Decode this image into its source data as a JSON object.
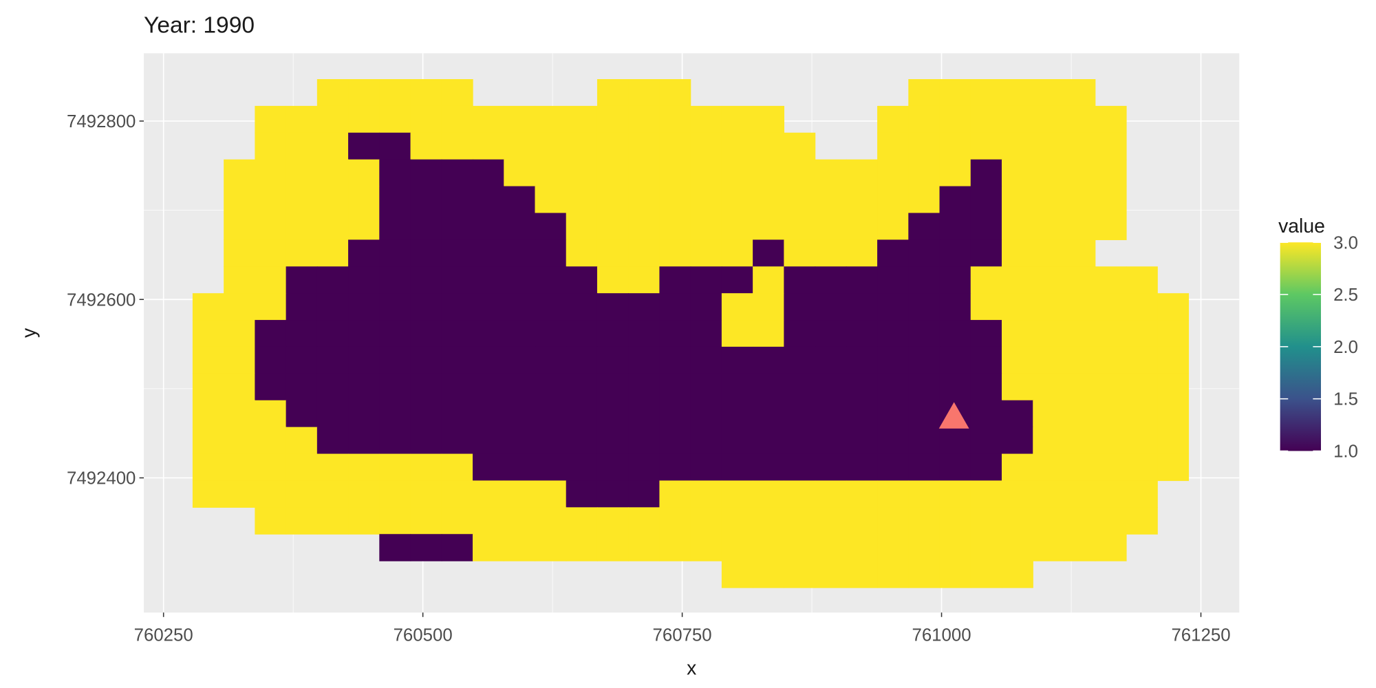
{
  "chart_data": {
    "type": "heatmap",
    "title": "Year: 1990",
    "x_label": "x",
    "y_label": "y",
    "x": [
      760293,
      760323,
      760353,
      760383,
      760413,
      760443,
      760473,
      760503,
      760533,
      760563,
      760593,
      760623,
      760653,
      760683,
      760713,
      760743,
      760773,
      760803,
      760833,
      760863,
      760893,
      760923,
      760953,
      760983,
      761013,
      761043,
      761073,
      761103,
      761133,
      761163,
      761193,
      761223
    ],
    "y": [
      7492832,
      7492802,
      7492772,
      7492742,
      7492712,
      7492682,
      7492652,
      7492622,
      7492592,
      7492562,
      7492532,
      7492502,
      7492472,
      7492442,
      7492412,
      7492382,
      7492352,
      7492322,
      7492292
    ],
    "z": [
      [
        null,
        null,
        null,
        null,
        3,
        3,
        3,
        3,
        3,
        null,
        null,
        null,
        null,
        3,
        3,
        3,
        null,
        null,
        null,
        null,
        null,
        null,
        null,
        3,
        3,
        3,
        3,
        3,
        3,
        null,
        null,
        null
      ],
      [
        null,
        null,
        3,
        3,
        3,
        3,
        3,
        3,
        3,
        3,
        3,
        3,
        3,
        3,
        3,
        3,
        3,
        3,
        3,
        null,
        null,
        null,
        3,
        3,
        3,
        3,
        3,
        3,
        3,
        3,
        null,
        null
      ],
      [
        null,
        null,
        3,
        3,
        3,
        1,
        1,
        3,
        3,
        3,
        3,
        3,
        3,
        3,
        3,
        3,
        3,
        3,
        3,
        3,
        null,
        null,
        3,
        3,
        3,
        3,
        3,
        3,
        3,
        3,
        null,
        null
      ],
      [
        null,
        3,
        3,
        3,
        3,
        3,
        1,
        1,
        1,
        1,
        3,
        3,
        3,
        3,
        3,
        3,
        3,
        3,
        3,
        3,
        3,
        3,
        3,
        3,
        3,
        1,
        3,
        3,
        3,
        3,
        null,
        null
      ],
      [
        null,
        3,
        3,
        3,
        3,
        3,
        1,
        1,
        1,
        1,
        1,
        3,
        3,
        3,
        3,
        3,
        3,
        3,
        3,
        3,
        3,
        3,
        3,
        3,
        1,
        1,
        3,
        3,
        3,
        3,
        null,
        null
      ],
      [
        null,
        3,
        3,
        3,
        3,
        3,
        1,
        1,
        1,
        1,
        1,
        1,
        3,
        3,
        3,
        3,
        3,
        3,
        3,
        3,
        3,
        3,
        3,
        1,
        1,
        1,
        3,
        3,
        3,
        3,
        null,
        null
      ],
      [
        null,
        3,
        3,
        3,
        3,
        1,
        1,
        1,
        1,
        1,
        1,
        1,
        3,
        3,
        3,
        3,
        3,
        3,
        1,
        3,
        3,
        3,
        1,
        1,
        1,
        1,
        3,
        3,
        3,
        null,
        null,
        null
      ],
      [
        null,
        3,
        3,
        1,
        1,
        1,
        1,
        1,
        1,
        1,
        1,
        1,
        1,
        3,
        3,
        1,
        1,
        1,
        3,
        1,
        1,
        1,
        1,
        1,
        1,
        3,
        3,
        3,
        3,
        3,
        3,
        null
      ],
      [
        3,
        3,
        3,
        1,
        1,
        1,
        1,
        1,
        1,
        1,
        1,
        1,
        1,
        1,
        1,
        1,
        1,
        3,
        3,
        1,
        1,
        1,
        1,
        1,
        1,
        3,
        3,
        3,
        3,
        3,
        3,
        3
      ],
      [
        3,
        3,
        1,
        1,
        1,
        1,
        1,
        1,
        1,
        1,
        1,
        1,
        1,
        1,
        1,
        1,
        1,
        3,
        3,
        1,
        1,
        1,
        1,
        1,
        1,
        1,
        3,
        3,
        3,
        3,
        3,
        3
      ],
      [
        3,
        3,
        1,
        1,
        1,
        1,
        1,
        1,
        1,
        1,
        1,
        1,
        1,
        1,
        1,
        1,
        1,
        1,
        1,
        1,
        1,
        1,
        1,
        1,
        1,
        1,
        3,
        3,
        3,
        3,
        3,
        3
      ],
      [
        3,
        3,
        1,
        1,
        1,
        1,
        1,
        1,
        1,
        1,
        1,
        1,
        1,
        1,
        1,
        1,
        1,
        1,
        1,
        1,
        1,
        1,
        1,
        1,
        1,
        1,
        3,
        3,
        3,
        3,
        3,
        3
      ],
      [
        3,
        3,
        3,
        1,
        1,
        1,
        1,
        1,
        1,
        1,
        1,
        1,
        1,
        1,
        1,
        1,
        1,
        1,
        1,
        1,
        1,
        1,
        1,
        1,
        1,
        1,
        1,
        3,
        3,
        3,
        3,
        3
      ],
      [
        3,
        3,
        3,
        3,
        1,
        1,
        1,
        1,
        1,
        1,
        1,
        1,
        1,
        1,
        1,
        1,
        1,
        1,
        1,
        1,
        1,
        1,
        1,
        1,
        1,
        1,
        1,
        3,
        3,
        3,
        3,
        3
      ],
      [
        3,
        3,
        3,
        3,
        3,
        3,
        3,
        3,
        3,
        1,
        1,
        1,
        1,
        1,
        1,
        1,
        1,
        1,
        1,
        1,
        1,
        1,
        1,
        1,
        1,
        1,
        3,
        3,
        3,
        3,
        3,
        3
      ],
      [
        3,
        3,
        3,
        3,
        3,
        3,
        3,
        3,
        3,
        3,
        3,
        3,
        1,
        1,
        1,
        3,
        3,
        3,
        3,
        3,
        3,
        3,
        3,
        3,
        3,
        3,
        3,
        3,
        3,
        3,
        3,
        null
      ],
      [
        null,
        null,
        3,
        3,
        3,
        3,
        3,
        3,
        3,
        3,
        3,
        3,
        3,
        3,
        3,
        3,
        3,
        3,
        3,
        3,
        3,
        3,
        3,
        3,
        3,
        3,
        3,
        3,
        3,
        3,
        3,
        null
      ],
      [
        null,
        null,
        null,
        null,
        null,
        null,
        1,
        1,
        1,
        3,
        3,
        3,
        3,
        3,
        3,
        3,
        3,
        3,
        3,
        3,
        3,
        3,
        3,
        3,
        3,
        3,
        3,
        3,
        3,
        3,
        null,
        null
      ],
      [
        null,
        null,
        null,
        null,
        null,
        null,
        null,
        null,
        null,
        null,
        null,
        null,
        null,
        null,
        null,
        null,
        null,
        3,
        3,
        3,
        3,
        3,
        3,
        3,
        3,
        3,
        3,
        null,
        null,
        null,
        null,
        null
      ]
    ],
    "xlim": [
      760231,
      761287
    ],
    "xticks": [
      760250,
      760500,
      760750,
      761000,
      761250
    ],
    "ylim": [
      7492249,
      7492876
    ],
    "yticks": [
      7492400,
      7492600,
      7492800
    ],
    "grid": true,
    "colorscale": [
      "#440154",
      "#3B528B",
      "#21908C",
      "#5DC863",
      "#FDE725"
    ],
    "legend": {
      "title": "value",
      "position": "right",
      "clim": [
        1,
        3
      ],
      "ticks": [
        {
          "value": 1,
          "label": "1.0"
        },
        1.5,
        {
          "value": 2,
          "label": "2.0"
        },
        2.5,
        {
          "value": 3,
          "label": "3.0"
        }
      ]
    },
    "points": {
      "x": [
        761012
      ],
      "y": [
        7492468
      ],
      "color": "#F8766D",
      "shape": "triangle"
    }
  }
}
